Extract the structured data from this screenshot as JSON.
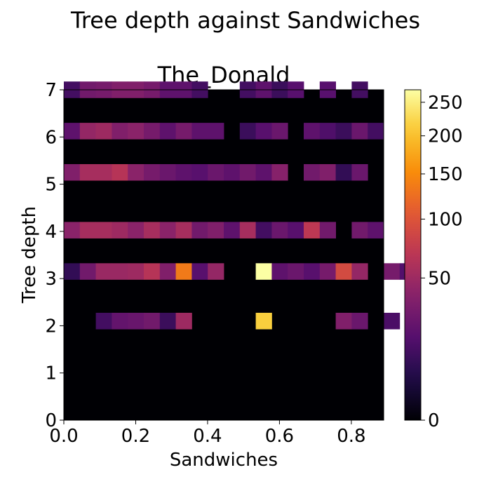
{
  "chart_data": {
    "type": "heatmap",
    "suptitle": "Tree depth against Sandwiches",
    "title": "The_Donald",
    "xlabel": "Sandwiches",
    "ylabel": "Tree depth",
    "xlim": [
      0,
      0.89
    ],
    "ylim": [
      0,
      7
    ],
    "x_ticks": [
      0.0,
      0.2,
      0.4,
      0.6,
      0.8
    ],
    "x_tick_labels": [
      "0.0",
      "0.2",
      "0.4",
      "0.6",
      "0.8"
    ],
    "y_ticks": [
      0,
      1,
      2,
      3,
      4,
      5,
      6,
      7
    ],
    "y_tick_labels": [
      "0",
      "1",
      "2",
      "3",
      "4",
      "5",
      "6",
      "7"
    ],
    "colormap": "inferno",
    "colorbar": {
      "scale": "power-0.5",
      "vmin": 0,
      "vmax": 270,
      "ticks": [
        0,
        50,
        100,
        150,
        200,
        250
      ],
      "tick_labels": [
        "0",
        "50",
        "100",
        "150",
        "200",
        "250"
      ]
    },
    "x_bin_width": 0.0445,
    "y_bin_height": 0.35,
    "rows": [
      {
        "y": 1.925,
        "values": [
          0,
          0,
          12,
          22,
          24,
          28,
          10,
          50,
          0,
          0,
          0,
          0,
          215,
          0,
          0,
          0,
          0,
          35,
          25,
          0,
          14,
          0
        ]
      },
      {
        "y": 2.975,
        "values": [
          8,
          28,
          48,
          48,
          50,
          65,
          35,
          135,
          18,
          45,
          0,
          0,
          270,
          20,
          25,
          18,
          30,
          90,
          45,
          0,
          30,
          16
        ]
      },
      {
        "y": 3.85,
        "values": [
          40,
          55,
          55,
          50,
          40,
          55,
          40,
          55,
          28,
          35,
          20,
          55,
          12,
          25,
          18,
          70,
          28,
          0,
          28,
          20,
          0,
          0
        ]
      },
      {
        "y": 5.075,
        "values": [
          35,
          55,
          55,
          65,
          40,
          30,
          25,
          20,
          18,
          25,
          20,
          28,
          20,
          38,
          0,
          28,
          35,
          8,
          25,
          0,
          0,
          0
        ]
      },
      {
        "y": 5.95,
        "values": [
          20,
          45,
          50,
          35,
          40,
          30,
          20,
          30,
          20,
          20,
          0,
          10,
          18,
          25,
          0,
          20,
          15,
          10,
          25,
          12,
          0,
          0
        ]
      },
      {
        "y": 6.825,
        "values": [
          12,
          28,
          30,
          35,
          35,
          30,
          20,
          20,
          12,
          0,
          0,
          12,
          20,
          10,
          18,
          0,
          18,
          0,
          12,
          0,
          0,
          0
        ]
      }
    ]
  }
}
